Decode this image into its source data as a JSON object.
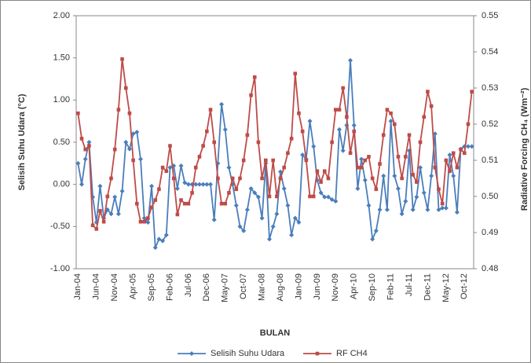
{
  "chart_data": {
    "type": "line",
    "y_label": "Selisih Suhu Udara (°C)",
    "y2_label": "Radiative Forcing CH₄ (Wm⁻²)",
    "x_label": "BULAN",
    "categories": [
      "Jan-04",
      null,
      null,
      null,
      null,
      "Jun-04",
      null,
      null,
      null,
      null,
      "Nov-04",
      null,
      null,
      null,
      null,
      "Apr-05",
      null,
      null,
      null,
      null,
      "Sep-05",
      null,
      null,
      null,
      null,
      "Feb-06",
      null,
      null,
      null,
      null,
      "Jul-06",
      null,
      null,
      null,
      null,
      "Dec-06",
      null,
      null,
      null,
      null,
      "May-07",
      null,
      null,
      null,
      null,
      "Oct-07",
      null,
      null,
      null,
      null,
      "Mar-08",
      null,
      null,
      null,
      null,
      "Aug-08",
      null,
      null,
      null,
      null,
      "Jan-09",
      null,
      null,
      null,
      null,
      "Jun-09",
      null,
      null,
      null,
      null,
      "Nov-09",
      null,
      null,
      null,
      null,
      "Apr-10",
      null,
      null,
      null,
      null,
      "Sep-10",
      null,
      null,
      null,
      null,
      "Feb-11",
      null,
      null,
      null,
      null,
      "Jul-11",
      null,
      null,
      null,
      null,
      "Dec-11",
      null,
      null,
      null,
      null,
      "May-12",
      null,
      null,
      null,
      null,
      "Oct-12",
      null,
      null
    ],
    "ylim": [
      -1.0,
      2.0
    ],
    "yticks": [
      {
        "value": 2.0,
        "label": "2.00"
      },
      {
        "value": 1.5,
        "label": "1.50"
      },
      {
        "value": 1.0,
        "label": "1.00"
      },
      {
        "value": 0.5,
        "label": "0.50"
      },
      {
        "value": 0,
        "label": "0.00"
      },
      {
        "value": -0.5,
        "label": "-0.50"
      },
      {
        "value": -1.0,
        "label": "-1.00"
      }
    ],
    "y2lim": [
      0.48,
      0.55
    ],
    "y2ticks": [
      0.55,
      0.54,
      0.53,
      0.52,
      0.51,
      {
        "value": 0.5,
        "label": "0.50"
      },
      0.49,
      0.48
    ],
    "series": [
      {
        "name": "Selisih Suhu Udara",
        "color": "#4a7ebb",
        "marker": "diamond",
        "values": [
          0.25,
          0.0,
          0.3,
          0.5,
          -0.15,
          -0.45,
          -0.02,
          -0.4,
          -0.3,
          -0.35,
          -0.15,
          -0.35,
          -0.08,
          0.5,
          0.42,
          0.6,
          0.62,
          0.3,
          -0.4,
          -0.45,
          -0.02,
          -0.75,
          -0.65,
          -0.67,
          -0.6,
          0.2,
          0.22,
          -0.05,
          0.22,
          0.02,
          0.0,
          0.0,
          0.0,
          0.0,
          0.0,
          0.0,
          0.0,
          -0.42,
          0.25,
          0.95,
          0.65,
          0.2,
          0.0,
          -0.25,
          -0.5,
          -0.55,
          -0.3,
          -0.05,
          -0.1,
          -0.15,
          -0.4,
          0.25,
          -0.65,
          -0.5,
          -0.35,
          0.15,
          -0.05,
          -0.25,
          -0.6,
          -0.4,
          -0.45,
          0.35,
          0.3,
          0.75,
          0.45,
          0.05,
          -0.1,
          -0.15,
          -0.15,
          -0.18,
          -0.2,
          0.65,
          0.4,
          0.7,
          1.47,
          0.7,
          -0.05,
          0.3,
          0.05,
          -0.25,
          -0.65,
          -0.55,
          -0.3,
          0.1,
          -0.3,
          0.75,
          0.1,
          -0.05,
          -0.35,
          -0.2,
          0.4,
          -0.3,
          -0.15,
          0.2,
          -0.1,
          -0.3,
          0.1,
          0.6,
          -0.3,
          -0.28,
          -0.28,
          0.35,
          0.1,
          -0.33,
          0.42,
          0.45,
          0.45,
          0.45
        ]
      },
      {
        "name": "RF CH4",
        "color": "#be4b48",
        "marker": "square",
        "axis": "y2",
        "values": [
          0.523,
          0.516,
          0.513,
          0.514,
          0.492,
          0.491,
          0.496,
          0.493,
          0.5,
          0.505,
          0.513,
          0.524,
          0.538,
          0.53,
          0.523,
          0.51,
          0.498,
          0.493,
          0.493,
          0.494,
          0.497,
          0.499,
          0.502,
          0.508,
          0.507,
          0.514,
          0.505,
          0.495,
          0.499,
          0.498,
          0.498,
          0.501,
          0.508,
          0.511,
          0.514,
          0.518,
          0.524,
          0.515,
          0.505,
          0.498,
          0.498,
          0.501,
          0.505,
          0.502,
          0.505,
          0.51,
          0.517,
          0.528,
          0.533,
          0.515,
          0.505,
          0.51,
          0.5,
          0.51,
          0.5,
          0.505,
          0.508,
          0.512,
          0.516,
          0.534,
          0.523,
          0.518,
          0.51,
          0.5,
          0.5,
          0.507,
          0.504,
          0.507,
          0.505,
          0.515,
          0.524,
          0.524,
          0.53,
          0.522,
          0.512,
          0.518,
          0.508,
          0.508,
          0.51,
          0.511,
          0.505,
          0.502,
          0.509,
          0.517,
          0.524,
          0.523,
          0.52,
          0.511,
          0.505,
          0.511,
          0.517,
          0.506,
          0.504,
          0.515,
          0.522,
          0.529,
          0.525,
          0.508,
          0.502,
          0.498,
          0.51,
          0.507,
          0.512,
          0.508,
          0.513,
          0.512,
          0.52,
          0.529
        ]
      }
    ]
  }
}
